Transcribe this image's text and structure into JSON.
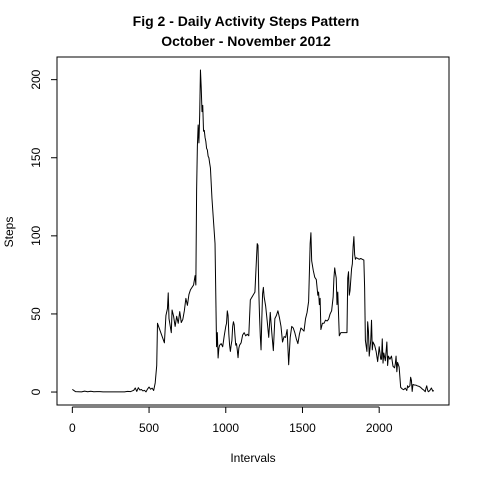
{
  "chart_data": {
    "type": "line",
    "title": "Fig 2 - Daily Activity Steps Pattern",
    "subtitle": "October - November 2012",
    "xlabel": "Intervals",
    "ylabel": "Steps",
    "xlim": [
      -100,
      2455
    ],
    "ylim": [
      -8.3,
      214.5
    ],
    "x_ticks": [
      0,
      500,
      1000,
      1500,
      2000
    ],
    "y_ticks": [
      0,
      50,
      100,
      150,
      200
    ],
    "grid": false,
    "series": [
      {
        "color": "#000000",
        "points": [
          [
            0,
            1.7
          ],
          [
            20,
            0.3
          ],
          [
            40,
            0.2
          ],
          [
            60,
            0.1
          ],
          [
            80,
            0.6
          ],
          [
            100,
            0.2
          ],
          [
            120,
            0.5
          ],
          [
            140,
            0.2
          ],
          [
            160,
            0.3
          ],
          [
            180,
            0.3
          ],
          [
            200,
            0.1
          ],
          [
            220,
            0.1
          ],
          [
            240,
            0.1
          ],
          [
            260,
            0.1
          ],
          [
            280,
            0.1
          ],
          [
            300,
            0.1
          ],
          [
            320,
            0.1
          ],
          [
            340,
            0.1
          ],
          [
            360,
            0.4
          ],
          [
            380,
            0.3
          ],
          [
            400,
            1.1
          ],
          [
            410,
            2.6
          ],
          [
            420,
            0.4
          ],
          [
            430,
            2.8
          ],
          [
            440,
            1.3
          ],
          [
            450,
            1.6
          ],
          [
            460,
            0.7
          ],
          [
            470,
            1.1
          ],
          [
            480,
            0.1
          ],
          [
            490,
            1.9
          ],
          [
            500,
            3.2
          ],
          [
            510,
            1.8
          ],
          [
            520,
            2.5
          ],
          [
            530,
            1.0
          ],
          [
            540,
            5.8
          ],
          [
            550,
            17.0
          ],
          [
            555,
            44.0
          ],
          [
            600,
            31.5
          ],
          [
            610,
            49.0
          ],
          [
            620,
            53.5
          ],
          [
            625,
            63.5
          ],
          [
            630,
            47.0
          ],
          [
            645,
            38.0
          ],
          [
            650,
            52.5
          ],
          [
            660,
            48.5
          ],
          [
            670,
            42.0
          ],
          [
            680,
            48.5
          ],
          [
            690,
            44.0
          ],
          [
            700,
            51.5
          ],
          [
            710,
            44.5
          ],
          [
            720,
            46.5
          ],
          [
            730,
            52.0
          ],
          [
            740,
            60.0
          ],
          [
            750,
            55.5
          ],
          [
            760,
            62.5
          ],
          [
            770,
            65.5
          ],
          [
            780,
            67.0
          ],
          [
            790,
            68.5
          ],
          [
            800,
            74.5
          ],
          [
            805,
            68.5
          ],
          [
            810,
            129.5
          ],
          [
            815,
            157.5
          ],
          [
            820,
            171.0
          ],
          [
            825,
            159.5
          ],
          [
            830,
            177.5
          ],
          [
            835,
            206.2
          ],
          [
            840,
            195.0
          ],
          [
            845,
            179.5
          ],
          [
            850,
            183.5
          ],
          [
            855,
            167.0
          ],
          [
            860,
            167.5
          ],
          [
            865,
            163.0
          ],
          [
            870,
            160.5
          ],
          [
            875,
            156.0
          ],
          [
            880,
            155.0
          ],
          [
            885,
            151.0
          ],
          [
            890,
            150.0
          ],
          [
            895,
            146.5
          ],
          [
            900,
            143.5
          ],
          [
            910,
            124.0
          ],
          [
            920,
            109.5
          ],
          [
            930,
            95.0
          ],
          [
            940,
            29.0
          ],
          [
            945,
            38.0
          ],
          [
            950,
            21.8
          ],
          [
            955,
            28.0
          ],
          [
            960,
            30.0
          ],
          [
            970,
            31.0
          ],
          [
            980,
            29.0
          ],
          [
            990,
            36.0
          ],
          [
            1000,
            42.0
          ],
          [
            1005,
            44.0
          ],
          [
            1010,
            52.0
          ],
          [
            1015,
            49.0
          ],
          [
            1020,
            37.0
          ],
          [
            1025,
            30.0
          ],
          [
            1030,
            26.0
          ],
          [
            1035,
            30.0
          ],
          [
            1040,
            33.0
          ],
          [
            1045,
            42.0
          ],
          [
            1050,
            45.0
          ],
          [
            1055,
            43.0
          ],
          [
            1060,
            36.0
          ],
          [
            1065,
            30.0
          ],
          [
            1070,
            31.0
          ],
          [
            1075,
            27.0
          ],
          [
            1080,
            22.0
          ],
          [
            1085,
            28.0
          ],
          [
            1090,
            30.0
          ],
          [
            1100,
            31.5
          ],
          [
            1110,
            36.5
          ],
          [
            1120,
            38.0
          ],
          [
            1130,
            36.0
          ],
          [
            1140,
            37.0
          ],
          [
            1150,
            36.0
          ],
          [
            1160,
            59.0
          ],
          [
            1175,
            61.5
          ],
          [
            1190,
            64.0
          ],
          [
            1200,
            85.0
          ],
          [
            1205,
            95.0
          ],
          [
            1210,
            94.0
          ],
          [
            1215,
            66.0
          ],
          [
            1220,
            49.0
          ],
          [
            1225,
            36.0
          ],
          [
            1230,
            27.0
          ],
          [
            1235,
            47.0
          ],
          [
            1240,
            63.0
          ],
          [
            1245,
            67.0
          ],
          [
            1250,
            61.0
          ],
          [
            1260,
            55.0
          ],
          [
            1270,
            45.5
          ],
          [
            1280,
            35.0
          ],
          [
            1290,
            51.0
          ],
          [
            1300,
            38.0
          ],
          [
            1310,
            26.5
          ],
          [
            1320,
            47.0
          ],
          [
            1330,
            49.0
          ],
          [
            1340,
            52.0
          ],
          [
            1350,
            47.5
          ],
          [
            1360,
            42.0
          ],
          [
            1370,
            32.0
          ],
          [
            1380,
            35.5
          ],
          [
            1390,
            35.0
          ],
          [
            1400,
            40.0
          ],
          [
            1410,
            17.5
          ],
          [
            1420,
            35.0
          ],
          [
            1430,
            42.0
          ],
          [
            1440,
            41.0
          ],
          [
            1450,
            38.0
          ],
          [
            1460,
            34.0
          ],
          [
            1470,
            31.0
          ],
          [
            1480,
            37.0
          ],
          [
            1490,
            41.0
          ],
          [
            1500,
            40.0
          ],
          [
            1510,
            39.0
          ],
          [
            1520,
            47.0
          ],
          [
            1530,
            51.0
          ],
          [
            1540,
            58.0
          ],
          [
            1550,
            95.0
          ],
          [
            1555,
            102.0
          ],
          [
            1560,
            84.0
          ],
          [
            1570,
            78.0
          ],
          [
            1580,
            73.5
          ],
          [
            1590,
            72.0
          ],
          [
            1600,
            62.0
          ],
          [
            1605,
            64.0
          ],
          [
            1610,
            56.0
          ],
          [
            1615,
            60.0
          ],
          [
            1620,
            40.0
          ],
          [
            1630,
            44.0
          ],
          [
            1640,
            44.0
          ],
          [
            1650,
            46.0
          ],
          [
            1660,
            45.5
          ],
          [
            1670,
            46.5
          ],
          [
            1680,
            50.0
          ],
          [
            1690,
            52.0
          ],
          [
            1700,
            61.0
          ],
          [
            1705,
            73.0
          ],
          [
            1710,
            79.5
          ],
          [
            1715,
            76.0
          ],
          [
            1720,
            73.0
          ],
          [
            1725,
            56.0
          ],
          [
            1730,
            64.0
          ],
          [
            1740,
            36.0
          ],
          [
            1750,
            38.0
          ],
          [
            1760,
            38.0
          ],
          [
            1770,
            38.0
          ],
          [
            1780,
            38.0
          ],
          [
            1790,
            38.0
          ],
          [
            1795,
            73.0
          ],
          [
            1800,
            77.0
          ],
          [
            1805,
            62.0
          ],
          [
            1810,
            65.0
          ],
          [
            1820,
            79.0
          ],
          [
            1825,
            82.0
          ],
          [
            1830,
            93.0
          ],
          [
            1835,
            99.5
          ],
          [
            1840,
            88.0
          ],
          [
            1845,
            85.0
          ],
          [
            1850,
            86.0
          ],
          [
            1860,
            85.5
          ],
          [
            1870,
            85.0
          ],
          [
            1880,
            85.5
          ],
          [
            1890,
            85.0
          ],
          [
            1900,
            84.5
          ],
          [
            1905,
            67.0
          ],
          [
            1910,
            33.0
          ],
          [
            1920,
            26.0
          ],
          [
            1925,
            45.0
          ],
          [
            1930,
            39.0
          ],
          [
            1935,
            23.0
          ],
          [
            1940,
            28.0
          ],
          [
            1945,
            33.0
          ],
          [
            1950,
            46.0
          ],
          [
            1955,
            27.0
          ],
          [
            1960,
            32.0
          ],
          [
            1970,
            30.0
          ],
          [
            1980,
            26.0
          ],
          [
            1990,
            19.5
          ],
          [
            2000,
            29.0
          ],
          [
            2010,
            21.0
          ],
          [
            2015,
            21.0
          ],
          [
            2020,
            34.0
          ],
          [
            2025,
            18.5
          ],
          [
            2030,
            25.0
          ],
          [
            2040,
            20.0
          ],
          [
            2050,
            32.0
          ],
          [
            2055,
            17.0
          ],
          [
            2060,
            23.0
          ],
          [
            2070,
            21.0
          ],
          [
            2080,
            23.0
          ],
          [
            2090,
            16.5
          ],
          [
            2100,
            15.5
          ],
          [
            2105,
            18.0
          ],
          [
            2110,
            23.0
          ],
          [
            2115,
            13.0
          ],
          [
            2120,
            19.0
          ],
          [
            2130,
            16.0
          ],
          [
            2140,
            3.0
          ],
          [
            2150,
            2.0
          ],
          [
            2160,
            1.5
          ],
          [
            2170,
            2.5
          ],
          [
            2180,
            1.0
          ],
          [
            2185,
            4.0
          ],
          [
            2190,
            3.0
          ],
          [
            2200,
            4.0
          ],
          [
            2205,
            9.5
          ],
          [
            2210,
            7.5
          ],
          [
            2215,
            0.4
          ],
          [
            2220,
            4.8
          ],
          [
            2230,
            4.5
          ],
          [
            2240,
            4.4
          ],
          [
            2250,
            3.9
          ],
          [
            2260,
            3.6
          ],
          [
            2270,
            3.0
          ],
          [
            2280,
            2.0
          ],
          [
            2290,
            1.3
          ],
          [
            2300,
            0.2
          ],
          [
            2305,
            2.5
          ],
          [
            2310,
            4.0
          ],
          [
            2315,
            1.5
          ],
          [
            2320,
            0.2
          ],
          [
            2325,
            0.5
          ],
          [
            2330,
            1.0
          ],
          [
            2340,
            2.6
          ],
          [
            2350,
            0.5
          ],
          [
            2355,
            1.1
          ]
        ]
      }
    ]
  }
}
